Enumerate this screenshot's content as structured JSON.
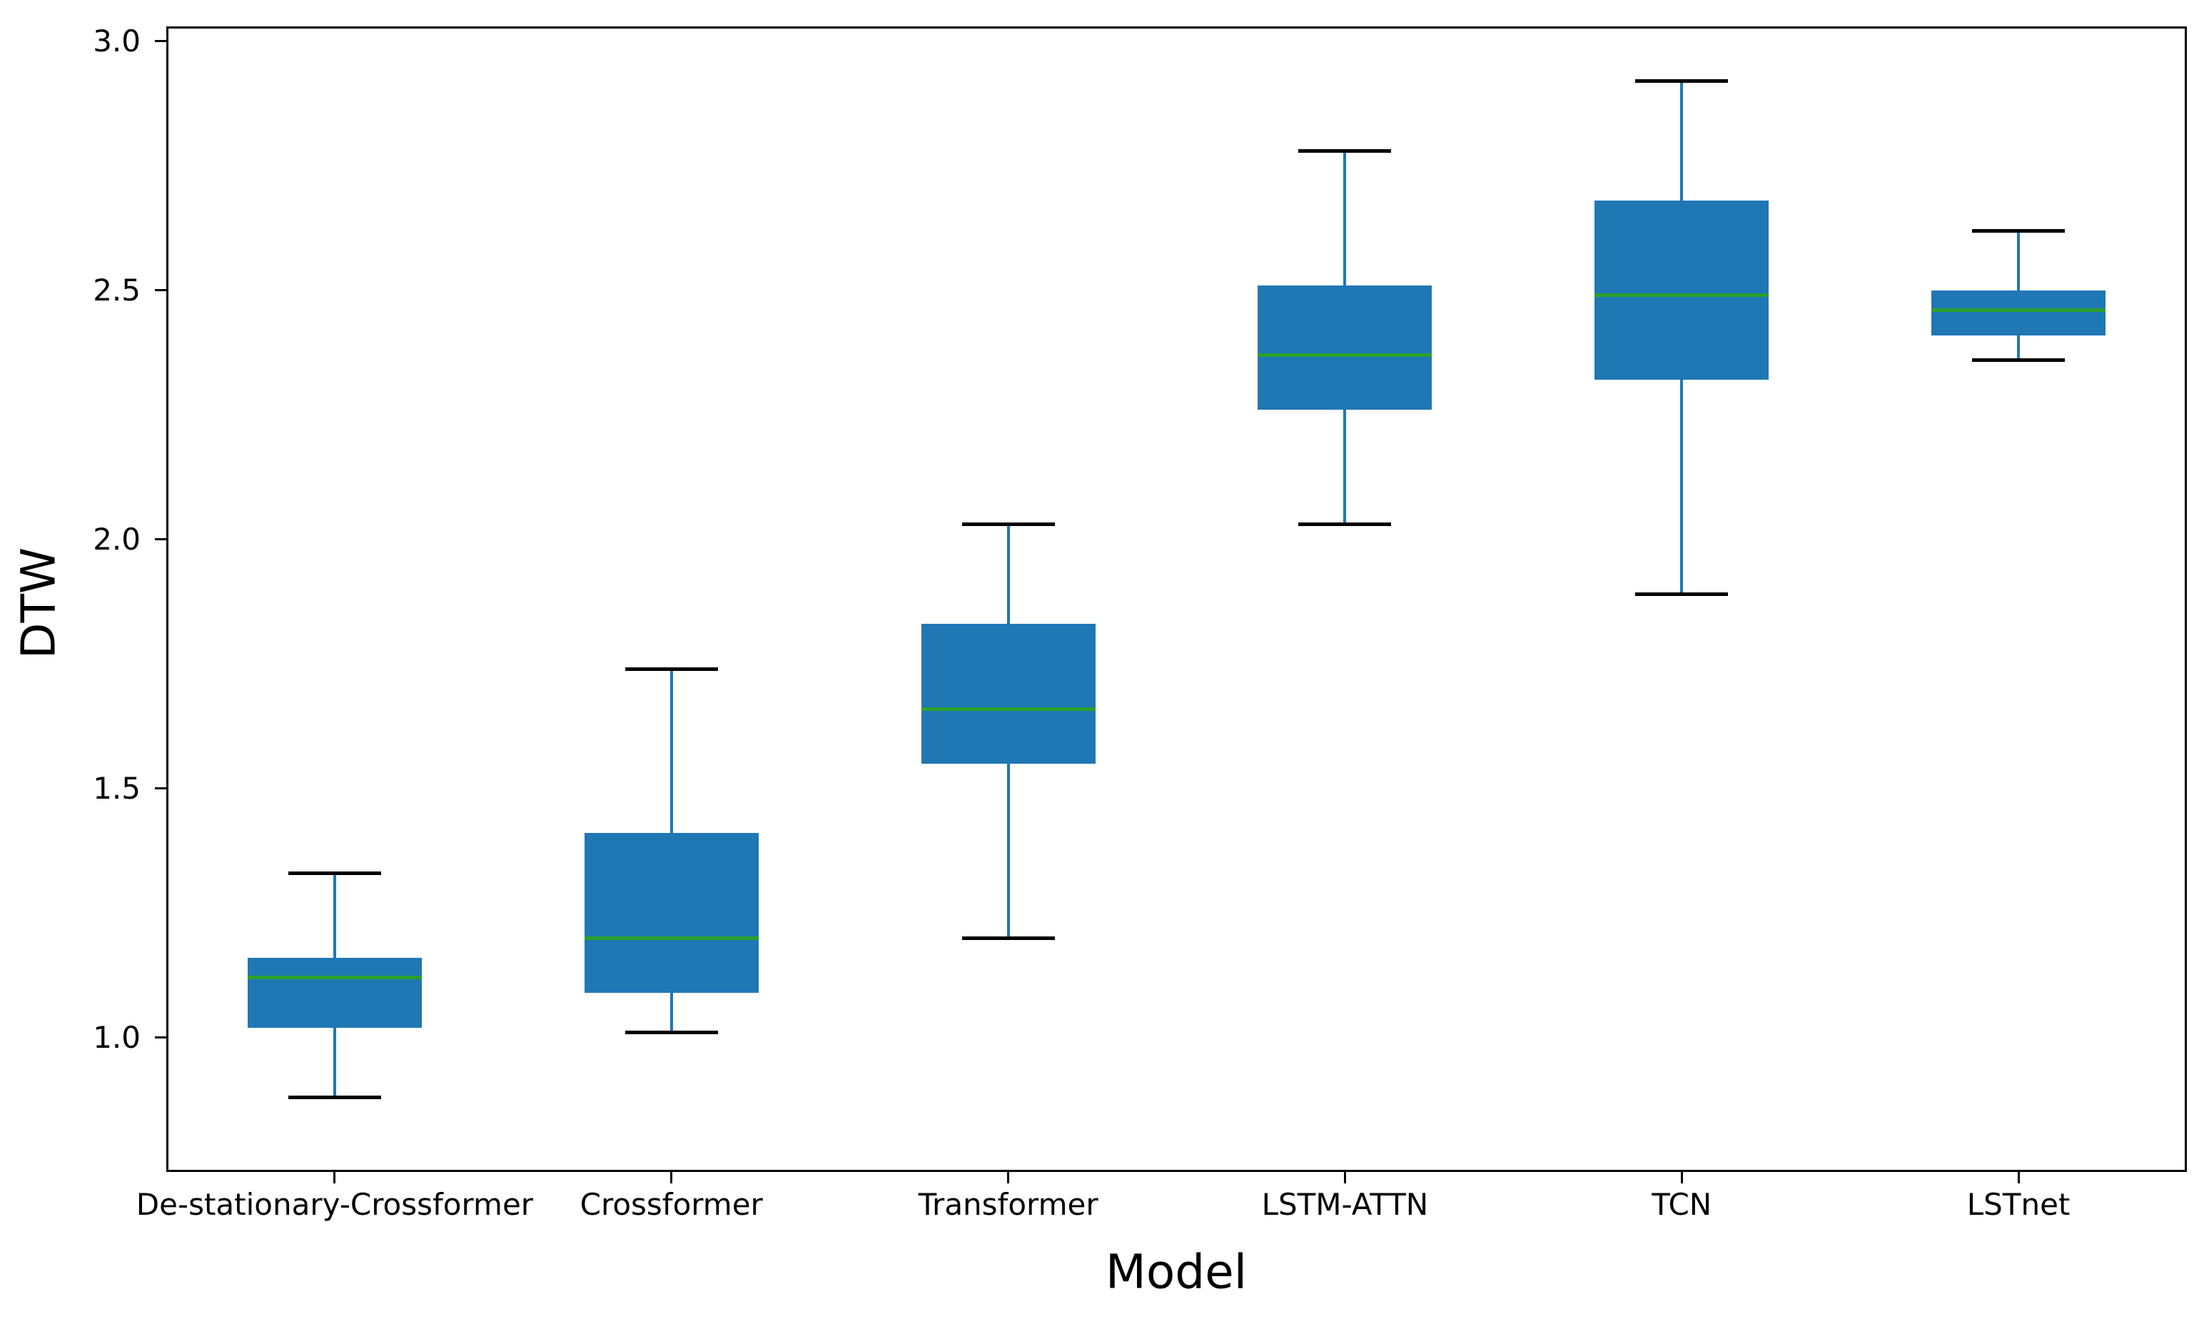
{
  "figure": {
    "xlabel": "Model",
    "ylabel": "DTW"
  },
  "chart_data": {
    "type": "box",
    "title": "",
    "xlabel": "Model",
    "ylabel": "DTW",
    "categories": [
      "De-stationary-Crossformer",
      "Crossformer",
      "Transformer",
      "LSTM-ATTN",
      "TCN",
      "LSTnet"
    ],
    "series": [
      {
        "name": "De-stationary-Crossformer",
        "whisker_low": 0.88,
        "q1": 1.02,
        "median": 1.12,
        "q3": 1.16,
        "whisker_high": 1.33
      },
      {
        "name": "Crossformer",
        "whisker_low": 1.01,
        "q1": 1.09,
        "median": 1.2,
        "q3": 1.41,
        "whisker_high": 1.74
      },
      {
        "name": "Transformer",
        "whisker_low": 1.2,
        "q1": 1.55,
        "median": 1.66,
        "q3": 1.83,
        "whisker_high": 2.03
      },
      {
        "name": "LSTM-ATTN",
        "whisker_low": 2.03,
        "q1": 2.26,
        "median": 2.37,
        "q3": 2.51,
        "whisker_high": 2.78
      },
      {
        "name": "TCN",
        "whisker_low": 1.89,
        "q1": 2.32,
        "median": 2.49,
        "q3": 2.68,
        "whisker_high": 2.92
      },
      {
        "name": "LSTnet",
        "whisker_low": 2.36,
        "q1": 2.41,
        "median": 2.46,
        "q3": 2.5,
        "whisker_high": 2.62
      }
    ],
    "yticks": [
      1.0,
      1.5,
      2.0,
      2.5,
      3.0
    ],
    "ylim": [
      0.73,
      3.03
    ],
    "grid": false,
    "legend": null,
    "colors": {
      "box_fill": "#1f77b4",
      "whisker": "#1f77b4",
      "cap": "#000000",
      "median": "#2ca02c",
      "frame": "#000000",
      "text": "#000000"
    }
  }
}
